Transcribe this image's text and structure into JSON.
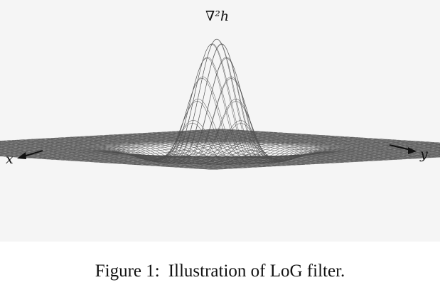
{
  "figure": {
    "axis_label_top": "∇²h",
    "axis_label_x": "x",
    "axis_label_y": "y",
    "mesh_color": "#4d4d4d",
    "background_color": "#f5f5f5"
  },
  "caption": {
    "number": "Figure 1:",
    "text": "Illustration of LoG filter."
  }
}
